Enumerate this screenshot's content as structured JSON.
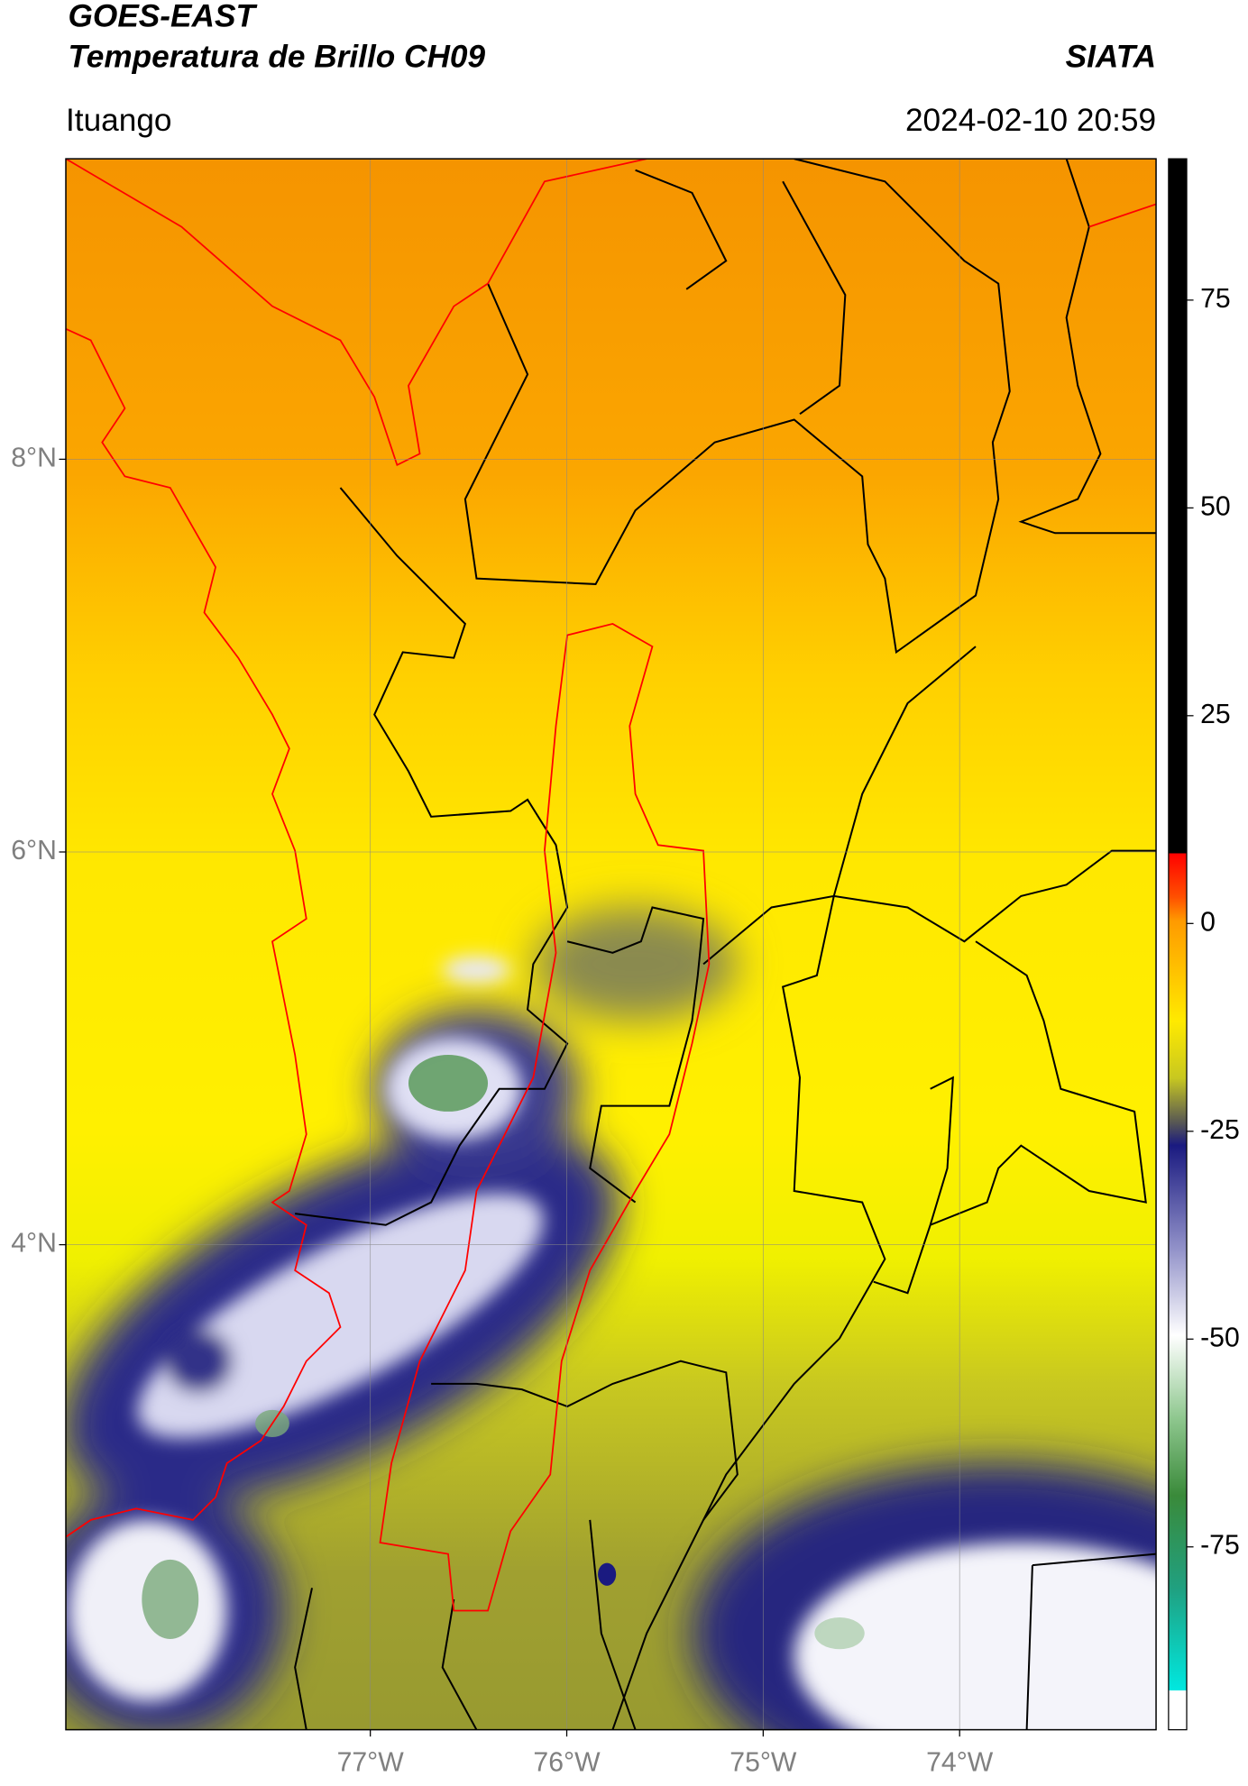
{
  "header": {
    "title_line1": "GOES-EAST",
    "title_line2": "Temperatura de Brillo CH09",
    "source": "SIATA",
    "location": "Ituango",
    "datetime": "2024-02-10 20:59"
  },
  "map": {
    "xlim": [
      -78.55,
      -73.0
    ],
    "ylim": [
      1.53,
      9.53
    ],
    "xticks": [
      {
        "value": -77,
        "label": "77°W"
      },
      {
        "value": -76,
        "label": "76°W"
      },
      {
        "value": -75,
        "label": "75°W"
      },
      {
        "value": -74,
        "label": "74°W"
      }
    ],
    "yticks": [
      {
        "value": 4,
        "label": "4°N"
      },
      {
        "value": 6,
        "label": "6°N"
      },
      {
        "value": 8,
        "label": "8°N"
      }
    ]
  },
  "colorbar": {
    "clim": [
      -97,
      92
    ],
    "ticks": [
      75,
      50,
      25,
      0,
      -25,
      -50,
      -75
    ]
  }
}
